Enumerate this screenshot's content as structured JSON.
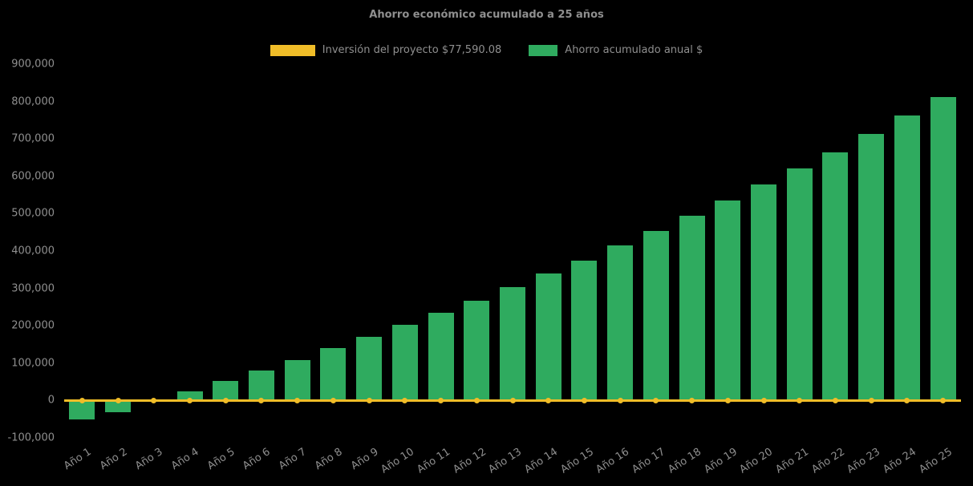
{
  "background": "#000000",
  "text_color": "#8f8f8f",
  "legend": {
    "items": [
      {
        "label": "Inversión del proyecto $77,590.08",
        "color": "#f0bd28"
      },
      {
        "label": "Ahorro acumulado anual $",
        "color": "#2fab5f"
      }
    ]
  },
  "chart_data": {
    "type": "bar",
    "title": "Ahorro económico acumulado a 25 años",
    "xlabel": "",
    "ylabel": "",
    "grid": false,
    "legend_position": "top",
    "x_tick_angle": -33,
    "ylim": [
      -100000,
      900000
    ],
    "categories": [
      "Año 1",
      "Año 2",
      "Año 3",
      "Año 4",
      "Año 5",
      "Año 6",
      "Año 7",
      "Año 8",
      "Año 9",
      "Año 10",
      "Año 11",
      "Año 12",
      "Año 13",
      "Año 14",
      "Año 15",
      "Año 16",
      "Año 17",
      "Año 18",
      "Año 19",
      "Año 20",
      "Año 21",
      "Año 22",
      "Año 23",
      "Año 24",
      "Año 25"
    ],
    "series": [
      {
        "name": "Ahorro acumulado anual $",
        "type": "bar",
        "color": "#2fab5f",
        "values": [
          -50000,
          -32000,
          -4000,
          25000,
          52000,
          80000,
          108000,
          140000,
          170000,
          202000,
          235000,
          268000,
          303000,
          340000,
          375000,
          415000,
          453000,
          495000,
          535000,
          578000,
          620000,
          665000,
          713000,
          763000,
          813000
        ]
      },
      {
        "name": "Inversión del proyecto $77,590.08",
        "type": "line",
        "color": "#f0bd28",
        "marker": "circle",
        "values": [
          0,
          0,
          0,
          0,
          0,
          0,
          0,
          0,
          0,
          0,
          0,
          0,
          0,
          0,
          0,
          0,
          0,
          0,
          0,
          0,
          0,
          0,
          0,
          0,
          0
        ]
      }
    ],
    "yticks": [
      {
        "value": 900000,
        "label": "900,000"
      },
      {
        "value": 800000,
        "label": "800,000"
      },
      {
        "value": 700000,
        "label": "700,000"
      },
      {
        "value": 600000,
        "label": "600,000"
      },
      {
        "value": 500000,
        "label": "500,000"
      },
      {
        "value": 400000,
        "label": "400,000"
      },
      {
        "value": 300000,
        "label": "300,000"
      },
      {
        "value": 200000,
        "label": "200,000"
      },
      {
        "value": 100000,
        "label": "100,000"
      },
      {
        "value": 0,
        "label": "0"
      },
      {
        "value": -100000,
        "label": "-100,000"
      }
    ]
  }
}
